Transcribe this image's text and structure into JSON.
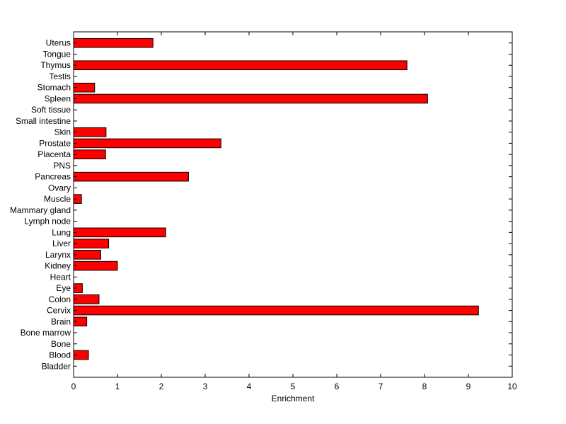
{
  "chart_data": {
    "type": "bar",
    "orientation": "horizontal",
    "xlabel": "Enrichment",
    "ylabel": "",
    "title": "",
    "xlim": [
      0,
      10
    ],
    "xticks": [
      "0",
      "1",
      "2",
      "3",
      "4",
      "5",
      "6",
      "7",
      "8",
      "9",
      "10"
    ],
    "grid": false,
    "bar_color": "#ff0000",
    "categories": [
      "Bladder",
      "Blood",
      "Bone",
      "Bone marrow",
      "Brain",
      "Cervix",
      "Colon",
      "Eye",
      "Heart",
      "Kidney",
      "Larynx",
      "Liver",
      "Lung",
      "Lymph node",
      "Mammary gland",
      "Muscle",
      "Ovary",
      "Pancreas",
      "PNS",
      "Placenta",
      "Prostate",
      "Skin",
      "Small intestine",
      "Soft tissue",
      "Spleen",
      "Stomach",
      "Testis",
      "Thymus",
      "Tongue",
      "Uterus"
    ],
    "values": [
      0,
      0.34,
      0,
      0,
      0.3,
      9.23,
      0.58,
      0.2,
      0,
      1.0,
      0.62,
      0.8,
      2.1,
      0,
      0,
      0.18,
      0,
      2.62,
      0,
      0.73,
      3.36,
      0.74,
      0,
      0,
      8.07,
      0.48,
      0,
      7.6,
      0,
      1.81
    ]
  }
}
